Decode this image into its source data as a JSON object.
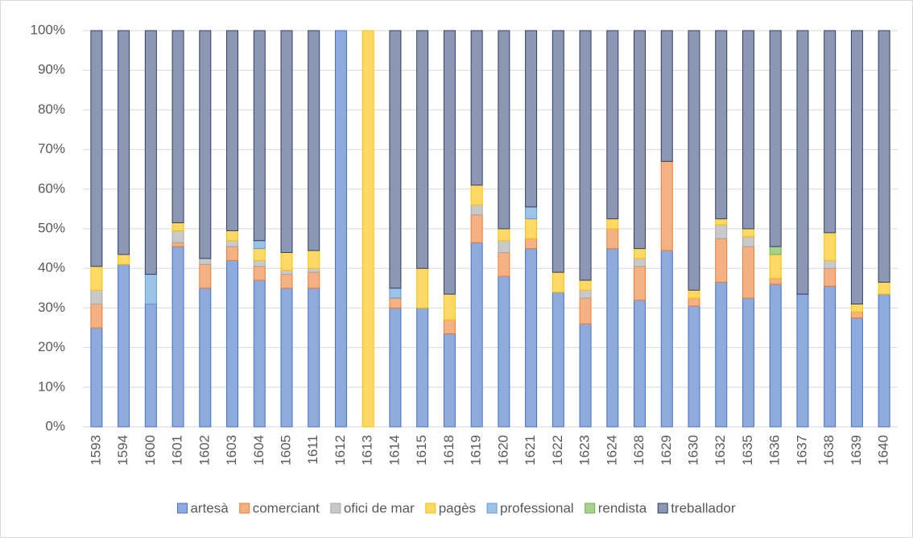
{
  "chart_data": {
    "type": "stacked_bar_100",
    "categories": [
      "1593",
      "1594",
      "1600",
      "1601",
      "1602",
      "1603",
      "1604",
      "1605",
      "1611",
      "1612",
      "1613",
      "1614",
      "1615",
      "1618",
      "1619",
      "1620",
      "1621",
      "1622",
      "1623",
      "1624",
      "1628",
      "1629",
      "1630",
      "1632",
      "1635",
      "1636",
      "1637",
      "1638",
      "1639",
      "1640"
    ],
    "series": [
      {
        "name": "artesà",
        "color": "#8faadc",
        "edgecolor": "#4472c4",
        "values": [
          25,
          41,
          31,
          45.5,
          35,
          42,
          37,
          35,
          35,
          100,
          0,
          30,
          30,
          23.5,
          46.5,
          38,
          45,
          34,
          26,
          45,
          32,
          44.5,
          30.5,
          36.5,
          32.5,
          36,
          33.5,
          35.5,
          27.5,
          33.5
        ]
      },
      {
        "name": "comerciant",
        "color": "#f4b183",
        "edgecolor": "#ed7d31",
        "values": [
          6,
          0,
          0,
          1,
          6,
          3.5,
          3.5,
          3.5,
          4,
          0,
          0,
          2.5,
          0,
          3.5,
          7,
          6,
          2.5,
          0,
          6.5,
          5,
          8.5,
          22.5,
          2,
          11,
          13,
          1.5,
          0,
          4.5,
          1.5,
          0
        ]
      },
      {
        "name": "ofici de mar",
        "color": "#c9c9c9",
        "edgecolor": "#a5a5a5",
        "values": [
          3.5,
          0,
          0,
          3,
          1.5,
          1.5,
          1.5,
          1,
          1,
          0,
          0,
          0,
          0,
          0,
          2.5,
          3,
          0,
          0,
          2,
          0,
          2,
          0,
          0,
          3.5,
          2.5,
          0,
          0,
          2,
          0,
          0
        ]
      },
      {
        "name": "pagès",
        "color": "#ffd966",
        "edgecolor": "#ffc000",
        "values": [
          6,
          2.5,
          0,
          2,
          0,
          2.5,
          3,
          4.5,
          4.5,
          0,
          100,
          0,
          10,
          6.5,
          5,
          3,
          5,
          5,
          2.5,
          2.5,
          2.5,
          0,
          2,
          1.5,
          2,
          6,
          0,
          7,
          2,
          3
        ]
      },
      {
        "name": "professional",
        "color": "#9dc3e6",
        "edgecolor": "#5b9bd5",
        "values": [
          0,
          0,
          7.5,
          0,
          0,
          0,
          2,
          0,
          0,
          0,
          0,
          2.5,
          0,
          0,
          0,
          0,
          3,
          0,
          0,
          0,
          0,
          0,
          0,
          0,
          0,
          0,
          0,
          0,
          0,
          0
        ]
      },
      {
        "name": "rendista",
        "color": "#a9d18e",
        "edgecolor": "#70ad47",
        "values": [
          0,
          0,
          0,
          0,
          0,
          0,
          0,
          0,
          0,
          0,
          0,
          0,
          0,
          0,
          0,
          0,
          0,
          0,
          0,
          0,
          0,
          0,
          0,
          0,
          0,
          2,
          0,
          0,
          0,
          0
        ]
      },
      {
        "name": "treballador",
        "color": "#8c97b3",
        "edgecolor": "#2f3f66",
        "values": [
          59.5,
          56.5,
          61.5,
          48.5,
          57.5,
          50.5,
          53,
          56,
          55.5,
          0,
          0,
          65,
          60,
          66.5,
          39,
          50,
          44.5,
          61,
          63,
          47.5,
          55,
          33,
          65.5,
          47.5,
          50,
          54.5,
          66.5,
          51,
          69,
          63.5
        ]
      }
    ],
    "ylim": [
      0,
      100
    ],
    "yticks": [
      {
        "value": 0,
        "label": "0%"
      },
      {
        "value": 10,
        "label": "10%"
      },
      {
        "value": 20,
        "label": "20%"
      },
      {
        "value": 30,
        "label": "30%"
      },
      {
        "value": 40,
        "label": "40%"
      },
      {
        "value": 50,
        "label": "50%"
      },
      {
        "value": 60,
        "label": "60%"
      },
      {
        "value": 70,
        "label": "70%"
      },
      {
        "value": 80,
        "label": "80%"
      },
      {
        "value": 90,
        "label": "90%"
      },
      {
        "value": 100,
        "label": "100%"
      }
    ],
    "grid": true,
    "legend": "bottom"
  }
}
